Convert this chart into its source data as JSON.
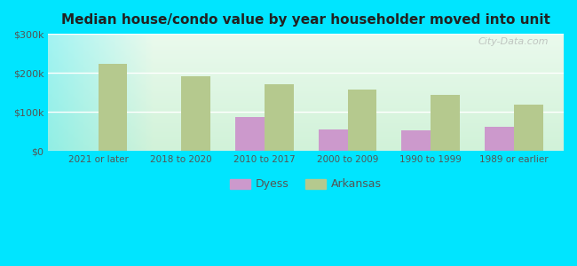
{
  "title": "Median house/condo value by year householder moved into unit",
  "categories": [
    "2021 or later",
    "2018 to 2020",
    "2010 to 2017",
    "2000 to 2009",
    "1990 to 1999",
    "1989 or earlier"
  ],
  "dyess_values": [
    null,
    null,
    87000,
    55000,
    52000,
    62000
  ],
  "arkansas_values": [
    222000,
    192000,
    170000,
    158000,
    143000,
    118000
  ],
  "dyess_color": "#cc99cc",
  "arkansas_color": "#b5c98e",
  "background_outer": "#00e5ff",
  "ylim": [
    0,
    300000
  ],
  "yticks": [
    0,
    100000,
    200000,
    300000
  ],
  "ytick_labels": [
    "$0",
    "$100k",
    "$200k",
    "$300k"
  ],
  "bar_width": 0.35,
  "legend_labels": [
    "Dyess",
    "Arkansas"
  ],
  "watermark": "City-Data.com"
}
